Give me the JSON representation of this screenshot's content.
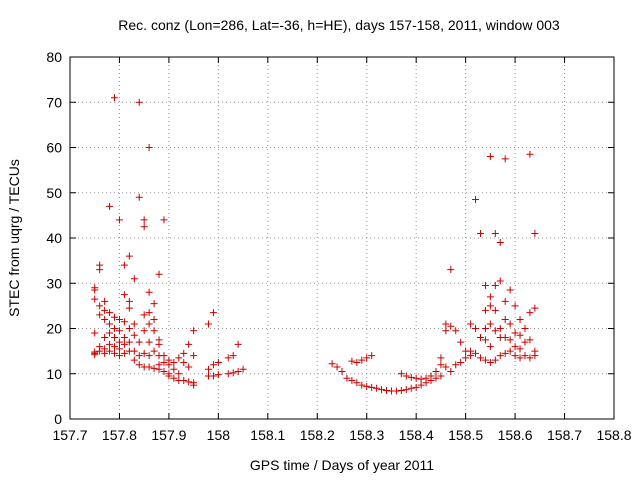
{
  "chart_data": {
    "type": "scatter",
    "title": "Rec. conz (Lon=286, Lat=-36, h=HE), days 157-158, 2011, window 003",
    "xlabel": "GPS time / Days of year 2011",
    "ylabel": "STEC from uqrg / TECUs",
    "xlim": [
      157.7,
      158.8
    ],
    "ylim": [
      0,
      80
    ],
    "xticks": [
      "157.7",
      "157.8",
      "157.9",
      "158",
      "158.1",
      "158.2",
      "158.3",
      "158.4",
      "158.5",
      "158.6",
      "158.7",
      "158.8"
    ],
    "yticks": [
      "0",
      "10",
      "20",
      "30",
      "40",
      "50",
      "60",
      "70",
      "80"
    ],
    "grid": true,
    "marker": "+",
    "color": "#cc0000",
    "points": [
      [
        157.75,
        29.0
      ],
      [
        157.75,
        28.5
      ],
      [
        157.75,
        26.5
      ],
      [
        157.75,
        19.0
      ],
      [
        157.75,
        14.8
      ],
      [
        157.75,
        14.5
      ],
      [
        157.75,
        14.2
      ],
      [
        157.76,
        34.0
      ],
      [
        157.76,
        33.0
      ],
      [
        157.76,
        25.0
      ],
      [
        157.76,
        23.0
      ],
      [
        157.76,
        16.0
      ],
      [
        157.76,
        15.0
      ],
      [
        157.77,
        26.0
      ],
      [
        157.77,
        24.0
      ],
      [
        157.77,
        22.0
      ],
      [
        157.77,
        18.0
      ],
      [
        157.77,
        15.5
      ],
      [
        157.77,
        14.5
      ],
      [
        157.78,
        47.0
      ],
      [
        157.78,
        23.5
      ],
      [
        157.78,
        21.0
      ],
      [
        157.78,
        19.0
      ],
      [
        157.78,
        16.5
      ],
      [
        157.78,
        15.0
      ],
      [
        157.79,
        71.0
      ],
      [
        157.79,
        22.5
      ],
      [
        157.79,
        20.0
      ],
      [
        157.79,
        18.0
      ],
      [
        157.79,
        16.0
      ],
      [
        157.79,
        14.5
      ],
      [
        157.8,
        44.0
      ],
      [
        157.8,
        22.0
      ],
      [
        157.8,
        19.5
      ],
      [
        157.8,
        17.0
      ],
      [
        157.8,
        15.5
      ],
      [
        157.8,
        14.0
      ],
      [
        157.81,
        34.0
      ],
      [
        157.81,
        27.5
      ],
      [
        157.81,
        21.5
      ],
      [
        157.81,
        18.0
      ],
      [
        157.81,
        16.5
      ],
      [
        157.81,
        14.5
      ],
      [
        157.82,
        36.0
      ],
      [
        157.82,
        26.0
      ],
      [
        157.82,
        24.5
      ],
      [
        157.82,
        20.0
      ],
      [
        157.82,
        17.0
      ],
      [
        157.82,
        15.0
      ],
      [
        157.83,
        31.0
      ],
      [
        157.83,
        21.0
      ],
      [
        157.83,
        18.5
      ],
      [
        157.83,
        15.0
      ],
      [
        157.83,
        13.0
      ],
      [
        157.84,
        70.0
      ],
      [
        157.84,
        49.0
      ],
      [
        157.84,
        17.0
      ],
      [
        157.84,
        14.0
      ],
      [
        157.84,
        12.0
      ],
      [
        157.85,
        44.0
      ],
      [
        157.85,
        42.5
      ],
      [
        157.85,
        23.0
      ],
      [
        157.85,
        19.5
      ],
      [
        157.85,
        14.5
      ],
      [
        157.85,
        11.5
      ],
      [
        157.86,
        60.0
      ],
      [
        157.86,
        28.0
      ],
      [
        157.86,
        23.5
      ],
      [
        157.86,
        21.0
      ],
      [
        157.86,
        17.0
      ],
      [
        157.86,
        14.0
      ],
      [
        157.86,
        11.5
      ],
      [
        157.87,
        25.5
      ],
      [
        157.87,
        22.0
      ],
      [
        157.87,
        19.5
      ],
      [
        157.87,
        15.0
      ],
      [
        157.87,
        11.2
      ],
      [
        157.88,
        32.0
      ],
      [
        157.88,
        17.5
      ],
      [
        157.88,
        16.5
      ],
      [
        157.88,
        14.0
      ],
      [
        157.88,
        12.0
      ],
      [
        157.88,
        11.0
      ],
      [
        157.89,
        44.0
      ],
      [
        157.89,
        14.0
      ],
      [
        157.89,
        12.5
      ],
      [
        157.89,
        10.5
      ],
      [
        157.9,
        13.0
      ],
      [
        157.9,
        12.0
      ],
      [
        157.9,
        10.0
      ],
      [
        157.9,
        9.5
      ],
      [
        157.91,
        12.5
      ],
      [
        157.91,
        11.0
      ],
      [
        157.91,
        9.0
      ],
      [
        157.92,
        13.5
      ],
      [
        157.92,
        10.0
      ],
      [
        157.92,
        8.5
      ],
      [
        157.93,
        14.5
      ],
      [
        157.93,
        12.5
      ],
      [
        157.93,
        8.5
      ],
      [
        157.94,
        16.5
      ],
      [
        157.94,
        11.5
      ],
      [
        157.94,
        8.2
      ],
      [
        157.95,
        19.5
      ],
      [
        157.95,
        14.0
      ],
      [
        157.95,
        8.0
      ],
      [
        157.95,
        7.5
      ],
      [
        157.98,
        21.0
      ],
      [
        157.98,
        11.0
      ],
      [
        157.98,
        9.5
      ],
      [
        157.99,
        23.5
      ],
      [
        157.99,
        12.0
      ],
      [
        157.99,
        9.5
      ],
      [
        158.0,
        12.5
      ],
      [
        158.0,
        9.8
      ],
      [
        158.02,
        13.5
      ],
      [
        158.02,
        10.0
      ],
      [
        158.03,
        14.0
      ],
      [
        158.03,
        10.2
      ],
      [
        158.04,
        16.5
      ],
      [
        158.04,
        10.5
      ],
      [
        158.05,
        11.0
      ],
      [
        158.23,
        12.2
      ],
      [
        158.24,
        11.5
      ],
      [
        158.25,
        10.5
      ],
      [
        158.26,
        9.0
      ],
      [
        158.27,
        12.8
      ],
      [
        158.27,
        8.5
      ],
      [
        158.28,
        12.5
      ],
      [
        158.28,
        8.0
      ],
      [
        158.29,
        13.0
      ],
      [
        158.29,
        7.5
      ],
      [
        158.3,
        13.5
      ],
      [
        158.3,
        7.2
      ],
      [
        158.31,
        14.0
      ],
      [
        158.31,
        7.0
      ],
      [
        158.32,
        6.8
      ],
      [
        158.33,
        6.5
      ],
      [
        158.34,
        6.3
      ],
      [
        158.35,
        6.2
      ],
      [
        158.36,
        6.2
      ],
      [
        158.37,
        10.0
      ],
      [
        158.37,
        6.3
      ],
      [
        158.38,
        9.5
      ],
      [
        158.38,
        6.5
      ],
      [
        158.39,
        9.2
      ],
      [
        158.39,
        6.8
      ],
      [
        158.4,
        9.0
      ],
      [
        158.4,
        7.0
      ],
      [
        158.41,
        8.8
      ],
      [
        158.41,
        7.5
      ],
      [
        158.42,
        9.0
      ],
      [
        158.42,
        8.0
      ],
      [
        158.43,
        9.5
      ],
      [
        158.43,
        8.5
      ],
      [
        158.44,
        10.5
      ],
      [
        158.44,
        9.0
      ],
      [
        158.45,
        12.0
      ],
      [
        158.45,
        13.5
      ],
      [
        158.45,
        9.5
      ],
      [
        158.46,
        21.0
      ],
      [
        158.46,
        19.5
      ],
      [
        158.46,
        11.5
      ],
      [
        158.47,
        33.0
      ],
      [
        158.47,
        20.5
      ],
      [
        158.47,
        10.5
      ],
      [
        158.48,
        19.5
      ],
      [
        158.48,
        12.0
      ],
      [
        158.49,
        17.0
      ],
      [
        158.49,
        12.5
      ],
      [
        158.5,
        15.0
      ],
      [
        158.5,
        13.5
      ],
      [
        158.51,
        21.0
      ],
      [
        158.51,
        15.0
      ],
      [
        158.51,
        14.0
      ],
      [
        158.52,
        48.5
      ],
      [
        158.52,
        20.0
      ],
      [
        158.52,
        14.5
      ],
      [
        158.53,
        41.0
      ],
      [
        158.53,
        18.0
      ],
      [
        158.53,
        13.5
      ],
      [
        158.54,
        29.5
      ],
      [
        158.54,
        24.0
      ],
      [
        158.54,
        20.0
      ],
      [
        158.54,
        17.5
      ],
      [
        158.54,
        13.0
      ],
      [
        158.55,
        58.0
      ],
      [
        158.55,
        27.0
      ],
      [
        158.55,
        25.0
      ],
      [
        158.55,
        21.0
      ],
      [
        158.55,
        16.0
      ],
      [
        158.55,
        12.5
      ],
      [
        158.56,
        41.0
      ],
      [
        158.56,
        29.5
      ],
      [
        158.56,
        24.0
      ],
      [
        158.56,
        19.5
      ],
      [
        158.56,
        13.0
      ],
      [
        158.57,
        39.0
      ],
      [
        158.57,
        30.5
      ],
      [
        158.57,
        20.0
      ],
      [
        158.57,
        18.0
      ],
      [
        158.57,
        14.0
      ],
      [
        158.58,
        57.5
      ],
      [
        158.58,
        26.0
      ],
      [
        158.58,
        22.0
      ],
      [
        158.58,
        18.0
      ],
      [
        158.58,
        14.5
      ],
      [
        158.59,
        28.5
      ],
      [
        158.59,
        21.0
      ],
      [
        158.59,
        17.5
      ],
      [
        158.59,
        15.0
      ],
      [
        158.6,
        25.0
      ],
      [
        158.6,
        19.0
      ],
      [
        158.6,
        16.0
      ],
      [
        158.6,
        14.0
      ],
      [
        158.61,
        22.0
      ],
      [
        158.61,
        18.5
      ],
      [
        158.61,
        15.5
      ],
      [
        158.61,
        13.5
      ],
      [
        158.62,
        20.0
      ],
      [
        158.62,
        17.0
      ],
      [
        158.62,
        14.0
      ],
      [
        158.63,
        58.5
      ],
      [
        158.63,
        23.5
      ],
      [
        158.63,
        17.5
      ],
      [
        158.63,
        13.5
      ],
      [
        158.64,
        41.0
      ],
      [
        158.64,
        24.5
      ],
      [
        158.64,
        15.0
      ],
      [
        158.64,
        14.0
      ]
    ]
  }
}
